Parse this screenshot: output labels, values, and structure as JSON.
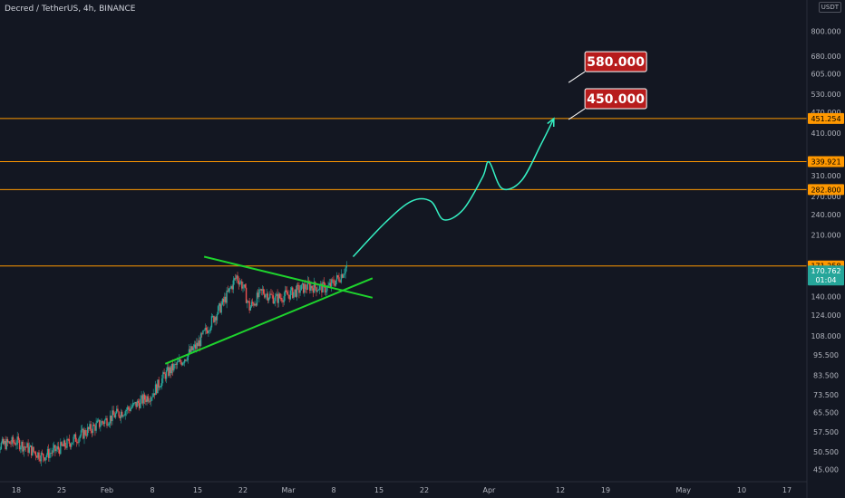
{
  "header": {
    "title": "Decred / TetherUS, 4h, BINANCE",
    "currency": "USDT"
  },
  "colors": {
    "background": "#131722",
    "axis_text": "#b2b5be",
    "up_candle": "#26a69a",
    "down_candle": "#ef5350",
    "level_line": "#ff9800",
    "triangle": "#1ed32d",
    "projection": "#35f0c3",
    "callout_fill": "#b71c1c",
    "price_badge": "#26a69a"
  },
  "chart_data": {
    "type": "candlestick",
    "y_scale": "log",
    "ylim": [
      43,
      960
    ],
    "x_axis": {
      "ticks": [
        {
          "label": "18",
          "date": "2021-01-18"
        },
        {
          "label": "25",
          "date": "2021-01-25"
        },
        {
          "label": "Feb",
          "date": "2021-02-01"
        },
        {
          "label": "8",
          "date": "2021-02-08"
        },
        {
          "label": "15",
          "date": "2021-02-15"
        },
        {
          "label": "22",
          "date": "2021-02-22"
        },
        {
          "label": "Mar",
          "date": "2021-03-01"
        },
        {
          "label": "8",
          "date": "2021-03-08"
        },
        {
          "label": "15",
          "date": "2021-03-15"
        },
        {
          "label": "22",
          "date": "2021-03-22"
        },
        {
          "label": "Apr",
          "date": "2021-04-01"
        },
        {
          "label": "12",
          "date": "2021-04-12"
        },
        {
          "label": "19",
          "date": "2021-04-19"
        },
        {
          "label": "May",
          "date": "2021-05-01"
        },
        {
          "label": "10",
          "date": "2021-05-10"
        },
        {
          "label": "17",
          "date": "2021-05-17"
        }
      ]
    },
    "y_axis": {
      "ticks": [
        "800.000",
        "680.000",
        "605.000",
        "530.000",
        "470.000",
        "410.000",
        "310.000",
        "270.000",
        "240.000",
        "210.000",
        "140.000",
        "124.000",
        "108.000",
        "95.500",
        "83.500",
        "73.500",
        "65.500",
        "57.500",
        "50.500",
        "45.000"
      ],
      "ticks_values": [
        800,
        680,
        605,
        530,
        470,
        410,
        310,
        270,
        240,
        210,
        140,
        124,
        108,
        95.5,
        83.5,
        73.5,
        65.5,
        57.5,
        50.5,
        45
      ]
    },
    "candle_path": [
      {
        "date": "2021-01-14",
        "price": 52
      },
      {
        "date": "2021-01-18",
        "price": 54
      },
      {
        "date": "2021-01-22",
        "price": 49
      },
      {
        "date": "2021-01-25",
        "price": 52
      },
      {
        "date": "2021-01-29",
        "price": 58
      },
      {
        "date": "2021-02-02",
        "price": 64
      },
      {
        "date": "2021-02-05",
        "price": 68
      },
      {
        "date": "2021-02-08",
        "price": 74
      },
      {
        "date": "2021-02-10",
        "price": 84
      },
      {
        "date": "2021-02-12",
        "price": 90
      },
      {
        "date": "2021-02-15",
        "price": 102
      },
      {
        "date": "2021-02-17",
        "price": 118
      },
      {
        "date": "2021-02-19",
        "price": 135
      },
      {
        "date": "2021-02-21",
        "price": 160
      },
      {
        "date": "2021-02-22",
        "price": 150
      },
      {
        "date": "2021-02-23",
        "price": 130
      },
      {
        "date": "2021-02-25",
        "price": 145
      },
      {
        "date": "2021-02-27",
        "price": 138
      },
      {
        "date": "2021-03-01",
        "price": 142
      },
      {
        "date": "2021-03-04",
        "price": 150
      },
      {
        "date": "2021-03-07",
        "price": 148
      },
      {
        "date": "2021-03-09",
        "price": 160
      },
      {
        "date": "2021-03-10",
        "price": 171
      }
    ],
    "horizontal_levels": [
      {
        "price": 451.254,
        "label": "451.254"
      },
      {
        "price": 339.921,
        "label": "339.921"
      },
      {
        "price": 282.8,
        "label": "282.800"
      },
      {
        "price": 171.258,
        "label": "171.258"
      }
    ],
    "current_price": {
      "label": "170.762",
      "countdown": "01:04",
      "price": 170.762
    },
    "triangle_lines": [
      {
        "from": {
          "date": "2021-02-10",
          "price": 90
        },
        "to": {
          "date": "2021-03-14",
          "price": 158
        }
      },
      {
        "from": {
          "date": "2021-02-16",
          "price": 182
        },
        "to": {
          "date": "2021-03-14",
          "price": 139
        }
      }
    ],
    "projection_path": [
      {
        "date": "2021-03-11",
        "price": 182
      },
      {
        "date": "2021-03-16",
        "price": 228
      },
      {
        "date": "2021-03-20",
        "price": 262
      },
      {
        "date": "2021-03-23",
        "price": 262
      },
      {
        "date": "2021-03-25",
        "price": 232
      },
      {
        "date": "2021-03-28",
        "price": 248
      },
      {
        "date": "2021-03-31",
        "price": 307
      },
      {
        "date": "2021-04-01",
        "price": 339
      },
      {
        "date": "2021-04-03",
        "price": 285
      },
      {
        "date": "2021-04-06",
        "price": 300
      },
      {
        "date": "2021-04-09",
        "price": 380
      },
      {
        "date": "2021-04-11",
        "price": 451
      }
    ],
    "annotations": [
      {
        "text": "580.000",
        "anchor": {
          "date": "2021-04-13",
          "price": 575
        }
      },
      {
        "text": "450.000",
        "anchor": {
          "date": "2021-04-13",
          "price": 451
        }
      }
    ]
  }
}
